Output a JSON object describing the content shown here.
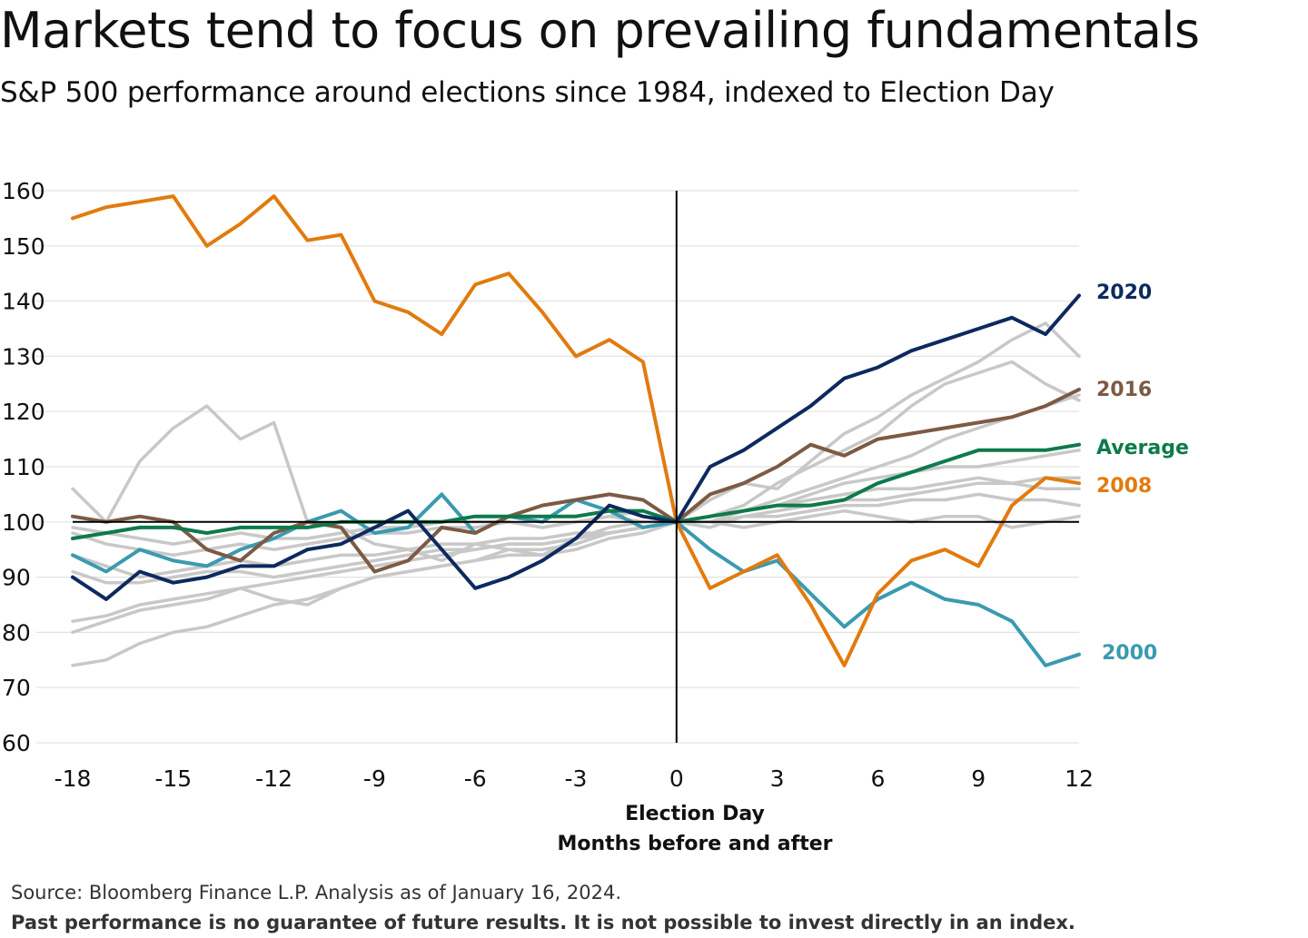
{
  "header": {
    "title": "Markets tend to focus on prevailing fundamentals",
    "subtitle": "S&P 500 performance around elections since 1984, indexed to Election Day"
  },
  "footer": {
    "source": "Source: Bloomberg Finance L.P. Analysis as of January 16, 2024.",
    "disclaimer": "Past performance is no guarantee of future results. It is not possible to invest directly in an index."
  },
  "chart_data": {
    "type": "line",
    "title": "Markets tend to focus on prevailing fundamentals",
    "subtitle": "S&P 500 performance around elections since 1984, indexed to Election Day",
    "xlabel": "Election Day",
    "xlabel2": "Months before and after",
    "ylabel": "",
    "xlim": [
      -18,
      12
    ],
    "ylim": [
      60,
      160
    ],
    "x_ticks": [
      -18,
      -15,
      -12,
      -9,
      -6,
      -3,
      0,
      3,
      6,
      9,
      12
    ],
    "y_ticks": [
      60,
      70,
      80,
      90,
      100,
      110,
      120,
      130,
      140,
      150,
      160
    ],
    "reference_lines": {
      "x": 0,
      "y": 100
    },
    "grid": "horizontal",
    "colors": {
      "y2020": "#0d2a5f",
      "y2016": "#7d5a44",
      "average": "#0e7a4b",
      "y2008": "#e17b0f",
      "y2000": "#3a9ab0",
      "other": "#c8c8c8",
      "grid": "#e2e2e2",
      "axis": "#000000"
    },
    "series": [
      {
        "name": "other-a",
        "label": "",
        "color_key": "other",
        "highlight": false,
        "x": [
          -18,
          -17,
          -16,
          -15,
          -14,
          -13,
          -12,
          -11,
          -10,
          -9,
          -8,
          -7,
          -6,
          -5,
          -4,
          -3,
          -2,
          -1,
          0,
          1,
          2,
          3,
          4,
          5,
          6,
          7,
          8,
          9,
          10,
          11,
          12
        ],
        "values": [
          106,
          100,
          111,
          117,
          121,
          115,
          118,
          100,
          99,
          96,
          95,
          93,
          96,
          95,
          94,
          97,
          99,
          100,
          100,
          104,
          107,
          106,
          111,
          116,
          119,
          123,
          126,
          129,
          133,
          136,
          130
        ]
      },
      {
        "name": "other-b",
        "label": "",
        "color_key": "other",
        "highlight": false,
        "x": [
          -18,
          -17,
          -16,
          -15,
          -14,
          -13,
          -12,
          -11,
          -10,
          -9,
          -8,
          -7,
          -6,
          -5,
          -4,
          -3,
          -2,
          -1,
          0,
          1,
          2,
          3,
          4,
          5,
          6,
          7,
          8,
          9,
          10,
          11,
          12
        ],
        "values": [
          74,
          75,
          78,
          80,
          81,
          83,
          85,
          86,
          88,
          90,
          91,
          92,
          93,
          95,
          95,
          96,
          98,
          99,
          100,
          101,
          103,
          107,
          110,
          113,
          116,
          121,
          125,
          127,
          129,
          125,
          122
        ]
      },
      {
        "name": "other-c",
        "label": "",
        "color_key": "other",
        "highlight": false,
        "x": [
          -18,
          -17,
          -16,
          -15,
          -14,
          -13,
          -12,
          -11,
          -10,
          -9,
          -8,
          -7,
          -6,
          -5,
          -4,
          -3,
          -2,
          -1,
          0,
          1,
          2,
          3,
          4,
          5,
          6,
          7,
          8,
          9,
          10,
          11,
          12
        ],
        "values": [
          80,
          82,
          84,
          85,
          86,
          88,
          89,
          90,
          91,
          92,
          93,
          94,
          95,
          96,
          96,
          97,
          98,
          99,
          100,
          101,
          102,
          104,
          106,
          108,
          110,
          112,
          115,
          117,
          119,
          121,
          123
        ]
      },
      {
        "name": "other-d",
        "label": "",
        "color_key": "other",
        "highlight": false,
        "x": [
          -18,
          -17,
          -16,
          -15,
          -14,
          -13,
          -12,
          -11,
          -10,
          -9,
          -8,
          -7,
          -6,
          -5,
          -4,
          -3,
          -2,
          -1,
          0,
          1,
          2,
          3,
          4,
          5,
          6,
          7,
          8,
          9,
          10,
          11,
          12
        ],
        "values": [
          82,
          83,
          85,
          86,
          87,
          88,
          86,
          85,
          88,
          90,
          91,
          92,
          93,
          94,
          94,
          95,
          97,
          98,
          100,
          100,
          102,
          103,
          105,
          107,
          108,
          109,
          110,
          110,
          111,
          112,
          113
        ]
      },
      {
        "name": "other-e",
        "label": "",
        "color_key": "other",
        "highlight": false,
        "x": [
          -18,
          -17,
          -16,
          -15,
          -14,
          -13,
          -12,
          -11,
          -10,
          -9,
          -8,
          -7,
          -6,
          -5,
          -4,
          -3,
          -2,
          -1,
          0,
          1,
          2,
          3,
          4,
          5,
          6,
          7,
          8,
          9,
          10,
          11,
          12
        ],
        "values": [
          91,
          89,
          89,
          90,
          91,
          91,
          90,
          91,
          92,
          93,
          94,
          95,
          95,
          96,
          96,
          97,
          98,
          99,
          100,
          99,
          101,
          102,
          103,
          104,
          104,
          105,
          106,
          107,
          107,
          108,
          108
        ]
      },
      {
        "name": "other-f",
        "label": "",
        "color_key": "other",
        "highlight": false,
        "x": [
          -18,
          -17,
          -16,
          -15,
          -14,
          -13,
          -12,
          -11,
          -10,
          -9,
          -8,
          -7,
          -6,
          -5,
          -4,
          -3,
          -2,
          -1,
          0,
          1,
          2,
          3,
          4,
          5,
          6,
          7,
          8,
          9,
          10,
          11,
          12
        ],
        "values": [
          98,
          96,
          95,
          94,
          95,
          96,
          95,
          96,
          97,
          98,
          98,
          99,
          99,
          100,
          99,
          100,
          101,
          100,
          100,
          101,
          102,
          103,
          104,
          105,
          106,
          106,
          107,
          108,
          107,
          106,
          106
        ]
      },
      {
        "name": "other-g",
        "label": "",
        "color_key": "other",
        "highlight": false,
        "x": [
          -18,
          -17,
          -16,
          -15,
          -14,
          -13,
          -12,
          -11,
          -10,
          -9,
          -8,
          -7,
          -6,
          -5,
          -4,
          -3,
          -2,
          -1,
          0,
          1,
          2,
          3,
          4,
          5,
          6,
          7,
          8,
          9,
          10,
          11,
          12
        ],
        "values": [
          94,
          92,
          90,
          91,
          92,
          93,
          92,
          93,
          94,
          94,
          95,
          96,
          96,
          97,
          97,
          98,
          98,
          99,
          100,
          100,
          101,
          101,
          102,
          103,
          103,
          104,
          104,
          105,
          104,
          104,
          103
        ]
      },
      {
        "name": "other-h",
        "label": "",
        "color_key": "other",
        "highlight": false,
        "x": [
          -18,
          -17,
          -16,
          -15,
          -14,
          -13,
          -12,
          -11,
          -10,
          -9,
          -8,
          -7,
          -6,
          -5,
          -4,
          -3,
          -2,
          -1,
          0,
          1,
          2,
          3,
          4,
          5,
          6,
          7,
          8,
          9,
          10,
          11,
          12
        ],
        "values": [
          99,
          98,
          97,
          96,
          97,
          98,
          97,
          97,
          98,
          99,
          99,
          100,
          100,
          100,
          99,
          100,
          101,
          102,
          100,
          100,
          99,
          100,
          101,
          102,
          101,
          100,
          101,
          101,
          99,
          100,
          101
        ]
      },
      {
        "name": "2000",
        "label": "2000",
        "color_key": "y2000",
        "highlight": true,
        "x": [
          -18,
          -17,
          -16,
          -15,
          -14,
          -13,
          -12,
          -11,
          -10,
          -9,
          -8,
          -7,
          -6,
          -5,
          -4,
          -3,
          -2,
          -1,
          0,
          1,
          2,
          3,
          4,
          5,
          6,
          7,
          8,
          9,
          10,
          11,
          12
        ],
        "values": [
          94,
          91,
          95,
          93,
          92,
          95,
          97,
          100,
          102,
          98,
          99,
          105,
          98,
          101,
          100,
          104,
          102,
          99,
          100,
          95,
          91,
          93,
          87,
          81,
          86,
          89,
          86,
          85,
          82,
          74,
          76
        ]
      },
      {
        "name": "2008",
        "label": "2008",
        "color_key": "y2008",
        "highlight": true,
        "x": [
          -18,
          -17,
          -16,
          -15,
          -14,
          -13,
          -12,
          -11,
          -10,
          -9,
          -8,
          -7,
          -6,
          -5,
          -4,
          -3,
          -2,
          -1,
          0,
          1,
          2,
          3,
          4,
          5,
          6,
          7,
          8,
          9,
          10,
          11,
          12
        ],
        "values": [
          155,
          157,
          158,
          159,
          150,
          154,
          159,
          151,
          152,
          140,
          138,
          134,
          143,
          145,
          138,
          130,
          133,
          129,
          100,
          88,
          91,
          94,
          85,
          74,
          87,
          93,
          95,
          92,
          103,
          108,
          107
        ]
      },
      {
        "name": "2016",
        "label": "2016",
        "color_key": "y2016",
        "highlight": true,
        "x": [
          -18,
          -17,
          -16,
          -15,
          -14,
          -13,
          -12,
          -11,
          -10,
          -9,
          -8,
          -7,
          -6,
          -5,
          -4,
          -3,
          -2,
          -1,
          0,
          1,
          2,
          3,
          4,
          5,
          6,
          7,
          8,
          9,
          10,
          11,
          12
        ],
        "values": [
          101,
          100,
          101,
          100,
          95,
          93,
          98,
          100,
          99,
          91,
          93,
          99,
          98,
          101,
          103,
          104,
          105,
          104,
          100,
          105,
          107,
          110,
          114,
          112,
          115,
          116,
          117,
          118,
          119,
          121,
          124
        ]
      },
      {
        "name": "Average",
        "label": "Average",
        "color_key": "average",
        "highlight": true,
        "x": [
          -18,
          -17,
          -16,
          -15,
          -14,
          -13,
          -12,
          -11,
          -10,
          -9,
          -8,
          -7,
          -6,
          -5,
          -4,
          -3,
          -2,
          -1,
          0,
          1,
          2,
          3,
          4,
          5,
          6,
          7,
          8,
          9,
          10,
          11,
          12
        ],
        "values": [
          97,
          98,
          99,
          99,
          98,
          99,
          99,
          99,
          100,
          100,
          100,
          100,
          101,
          101,
          101,
          101,
          102,
          102,
          100,
          101,
          102,
          103,
          103,
          104,
          107,
          109,
          111,
          113,
          113,
          113,
          114
        ]
      },
      {
        "name": "2020",
        "label": "2020",
        "color_key": "y2020",
        "highlight": true,
        "x": [
          -18,
          -17,
          -16,
          -15,
          -14,
          -13,
          -12,
          -11,
          -10,
          -9,
          -8,
          -7,
          -6,
          -5,
          -4,
          -3,
          -2,
          -1,
          0,
          1,
          2,
          3,
          4,
          5,
          6,
          7,
          8,
          9,
          10,
          11,
          12
        ],
        "values": [
          90,
          86,
          91,
          89,
          90,
          92,
          92,
          95,
          96,
          99,
          102,
          95,
          88,
          90,
          93,
          97,
          103,
          101,
          100,
          110,
          113,
          117,
          121,
          126,
          128,
          131,
          133,
          135,
          137,
          134,
          141
        ]
      }
    ]
  }
}
